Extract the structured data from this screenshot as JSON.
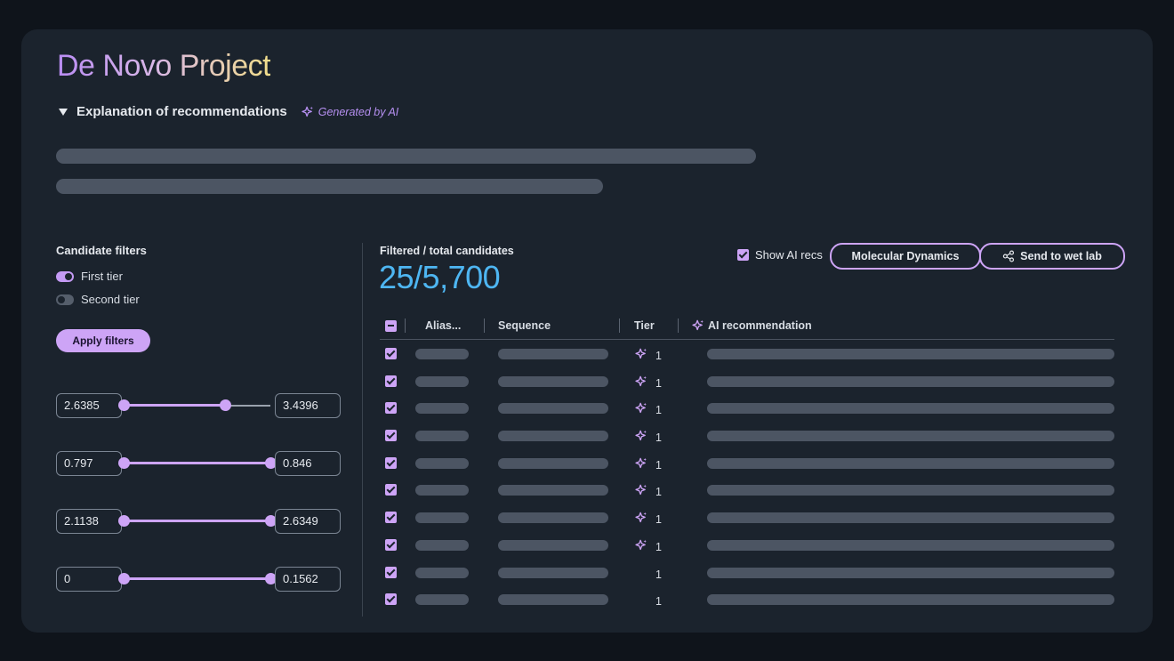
{
  "app": {
    "title": "De Novo Project"
  },
  "explanation": {
    "label": "Explanation of recommendations",
    "generated_label": "Generated by AI",
    "expanded": true
  },
  "filters": {
    "title": "Candidate filters",
    "toggles": [
      {
        "label": "First tier",
        "on": true
      },
      {
        "label": "Second tier",
        "on": false
      }
    ],
    "apply_label": "Apply filters",
    "ranges": [
      {
        "min": "2.6385",
        "max": "3.4396",
        "low_fraction": 0.0,
        "high_fraction": 0.69
      },
      {
        "min": "0.797",
        "max": "0.846",
        "low_fraction": 0.0,
        "high_fraction": 1.0
      },
      {
        "min": "2.1138",
        "max": "2.6349",
        "low_fraction": 0.0,
        "high_fraction": 1.0
      },
      {
        "min": "0",
        "max": "0.1562",
        "low_fraction": 0.0,
        "high_fraction": 1.0
      }
    ]
  },
  "candidates": {
    "label": "Filtered / total candidates",
    "value": "25/5,700",
    "show_ai_label": "Show AI recs",
    "show_ai_checked": true,
    "molecular_dynamics_label": "Molecular Dynamics",
    "send_label": "Send to wet lab"
  },
  "table": {
    "columns": [
      "Alias...",
      "Sequence",
      "Tier",
      "AI recommendation"
    ],
    "rows": [
      {
        "checked": true,
        "tier": "1",
        "ai": true
      },
      {
        "checked": true,
        "tier": "1",
        "ai": true
      },
      {
        "checked": true,
        "tier": "1",
        "ai": true
      },
      {
        "checked": true,
        "tier": "1",
        "ai": true
      },
      {
        "checked": true,
        "tier": "1",
        "ai": true
      },
      {
        "checked": true,
        "tier": "1",
        "ai": true
      },
      {
        "checked": true,
        "tier": "1",
        "ai": true
      },
      {
        "checked": true,
        "tier": "1",
        "ai": true
      },
      {
        "checked": true,
        "tier": "1",
        "ai": false
      },
      {
        "checked": true,
        "tier": "1",
        "ai": false
      }
    ]
  },
  "colors": {
    "accent": "#cda4f6",
    "highlight_number": "#4eb6f2",
    "card_background": "#1b232d",
    "page_background": "#0f141b"
  }
}
